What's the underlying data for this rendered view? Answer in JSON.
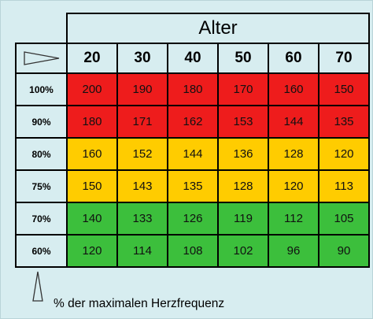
{
  "colors": {
    "background": "#d7edf0",
    "red": "#ee1c1c",
    "yellow": "#ffcc00",
    "green": "#3cbf3c"
  },
  "chart_data": {
    "type": "table",
    "title": "Alter",
    "xlabel": "Alter",
    "ylabel": "% der maximalen Herzfrequenz",
    "columns": [
      "20",
      "30",
      "40",
      "50",
      "60",
      "70"
    ],
    "rows": [
      {
        "label": "100%",
        "zone": "red",
        "values": [
          200,
          190,
          180,
          170,
          160,
          150
        ]
      },
      {
        "label": "90%",
        "zone": "red",
        "values": [
          180,
          171,
          162,
          153,
          144,
          135
        ]
      },
      {
        "label": "80%",
        "zone": "yellow",
        "values": [
          160,
          152,
          144,
          136,
          128,
          120
        ]
      },
      {
        "label": "75%",
        "zone": "yellow",
        "values": [
          150,
          143,
          135,
          128,
          120,
          113
        ]
      },
      {
        "label": "70%",
        "zone": "green",
        "values": [
          140,
          133,
          126,
          119,
          112,
          105
        ]
      },
      {
        "label": "60%",
        "zone": "green",
        "values": [
          120,
          114,
          108,
          102,
          96,
          90
        ]
      }
    ]
  }
}
